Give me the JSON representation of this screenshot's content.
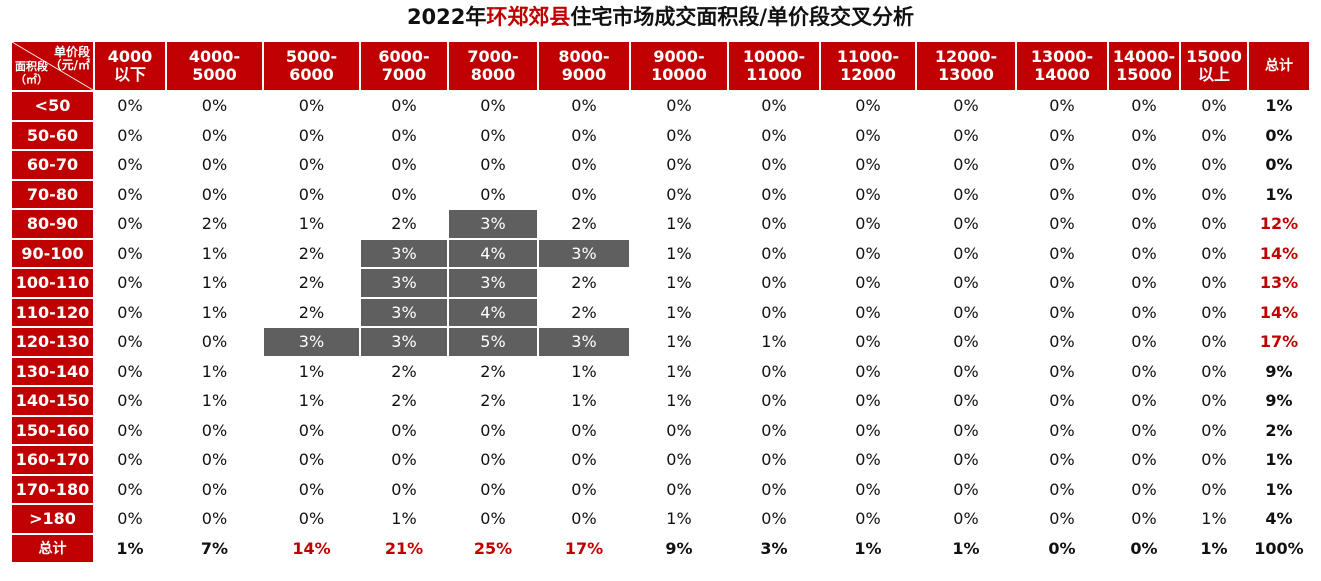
{
  "title": {
    "prefix": "2022年",
    "highlight": "环郑郊县",
    "suffix": "住宅市场成交面积段/单价段交叉分析"
  },
  "chart_data": {
    "type": "table",
    "corner": {
      "price_label_line1": "单价段",
      "price_label_line2": "（元/㎡",
      "area_label_line1": "面积段",
      "area_label_line2": "（㎡）"
    },
    "columns": [
      {
        "l1": "4000",
        "l2": "以下"
      },
      {
        "l1": "4000-",
        "l2": "5000"
      },
      {
        "l1": "5000-",
        "l2": "6000"
      },
      {
        "l1": "6000-",
        "l2": "7000"
      },
      {
        "l1": "7000-",
        "l2": "8000"
      },
      {
        "l1": "8000-",
        "l2": "9000"
      },
      {
        "l1": "9000-",
        "l2": "10000"
      },
      {
        "l1": "10000-",
        "l2": "11000"
      },
      {
        "l1": "11000-",
        "l2": "12000"
      },
      {
        "l1": "12000-",
        "l2": "13000"
      },
      {
        "l1": "13000-",
        "l2": "14000"
      },
      {
        "l1": "14000-",
        "l2": "15000"
      },
      {
        "l1": "15000",
        "l2": "以上"
      },
      {
        "l1": "总计",
        "l2": ""
      }
    ],
    "rows": [
      {
        "label": "<50",
        "values": [
          "0%",
          "0%",
          "0%",
          "0%",
          "0%",
          "0%",
          "0%",
          "0%",
          "0%",
          "0%",
          "0%",
          "0%",
          "0%",
          "1%"
        ]
      },
      {
        "label": "50-60",
        "values": [
          "0%",
          "0%",
          "0%",
          "0%",
          "0%",
          "0%",
          "0%",
          "0%",
          "0%",
          "0%",
          "0%",
          "0%",
          "0%",
          "0%"
        ]
      },
      {
        "label": "60-70",
        "values": [
          "0%",
          "0%",
          "0%",
          "0%",
          "0%",
          "0%",
          "0%",
          "0%",
          "0%",
          "0%",
          "0%",
          "0%",
          "0%",
          "0%"
        ]
      },
      {
        "label": "70-80",
        "values": [
          "0%",
          "0%",
          "0%",
          "0%",
          "0%",
          "0%",
          "0%",
          "0%",
          "0%",
          "0%",
          "0%",
          "0%",
          "0%",
          "1%"
        ]
      },
      {
        "label": "80-90",
        "values": [
          "0%",
          "2%",
          "1%",
          "2%",
          "3%",
          "2%",
          "1%",
          "0%",
          "0%",
          "0%",
          "0%",
          "0%",
          "0%",
          "12%"
        ]
      },
      {
        "label": "90-100",
        "values": [
          "0%",
          "1%",
          "2%",
          "3%",
          "4%",
          "3%",
          "1%",
          "0%",
          "0%",
          "0%",
          "0%",
          "0%",
          "0%",
          "14%"
        ]
      },
      {
        "label": "100-110",
        "values": [
          "0%",
          "1%",
          "2%",
          "3%",
          "3%",
          "2%",
          "1%",
          "0%",
          "0%",
          "0%",
          "0%",
          "0%",
          "0%",
          "13%"
        ]
      },
      {
        "label": "110-120",
        "values": [
          "0%",
          "1%",
          "2%",
          "3%",
          "4%",
          "2%",
          "1%",
          "0%",
          "0%",
          "0%",
          "0%",
          "0%",
          "0%",
          "14%"
        ]
      },
      {
        "label": "120-130",
        "values": [
          "0%",
          "0%",
          "3%",
          "3%",
          "5%",
          "3%",
          "1%",
          "1%",
          "0%",
          "0%",
          "0%",
          "0%",
          "0%",
          "17%"
        ]
      },
      {
        "label": "130-140",
        "values": [
          "0%",
          "1%",
          "1%",
          "2%",
          "2%",
          "1%",
          "1%",
          "0%",
          "0%",
          "0%",
          "0%",
          "0%",
          "0%",
          "9%"
        ]
      },
      {
        "label": "140-150",
        "values": [
          "0%",
          "1%",
          "1%",
          "2%",
          "2%",
          "1%",
          "1%",
          "0%",
          "0%",
          "0%",
          "0%",
          "0%",
          "0%",
          "9%"
        ]
      },
      {
        "label": "150-160",
        "values": [
          "0%",
          "0%",
          "0%",
          "0%",
          "0%",
          "0%",
          "0%",
          "0%",
          "0%",
          "0%",
          "0%",
          "0%",
          "0%",
          "2%"
        ]
      },
      {
        "label": "160-170",
        "values": [
          "0%",
          "0%",
          "0%",
          "0%",
          "0%",
          "0%",
          "0%",
          "0%",
          "0%",
          "0%",
          "0%",
          "0%",
          "0%",
          "1%"
        ]
      },
      {
        "label": "170-180",
        "values": [
          "0%",
          "0%",
          "0%",
          "0%",
          "0%",
          "0%",
          "0%",
          "0%",
          "0%",
          "0%",
          "0%",
          "0%",
          "0%",
          "1%"
        ]
      },
      {
        "label": ">180",
        "values": [
          "0%",
          "0%",
          "0%",
          "1%",
          "0%",
          "0%",
          "1%",
          "0%",
          "0%",
          "0%",
          "0%",
          "0%",
          "1%",
          "4%"
        ]
      },
      {
        "label": "总计",
        "values": [
          "1%",
          "7%",
          "14%",
          "21%",
          "25%",
          "17%",
          "9%",
          "3%",
          "1%",
          "1%",
          "0%",
          "0%",
          "1%",
          "100%"
        ]
      }
    ],
    "highlighted_cells": [
      [
        4,
        4
      ],
      [
        5,
        3
      ],
      [
        5,
        4
      ],
      [
        5,
        5
      ],
      [
        6,
        3
      ],
      [
        6,
        4
      ],
      [
        7,
        3
      ],
      [
        7,
        4
      ],
      [
        8,
        2
      ],
      [
        8,
        3
      ],
      [
        8,
        4
      ],
      [
        8,
        5
      ]
    ],
    "red_total_rows": [
      4,
      5,
      6,
      7,
      8
    ],
    "red_total_cols": [
      2,
      3,
      4,
      5
    ]
  },
  "colors": {
    "header_bg": "#c00000",
    "highlight_bg": "#5f5f5f",
    "accent_text": "#c00000"
  }
}
